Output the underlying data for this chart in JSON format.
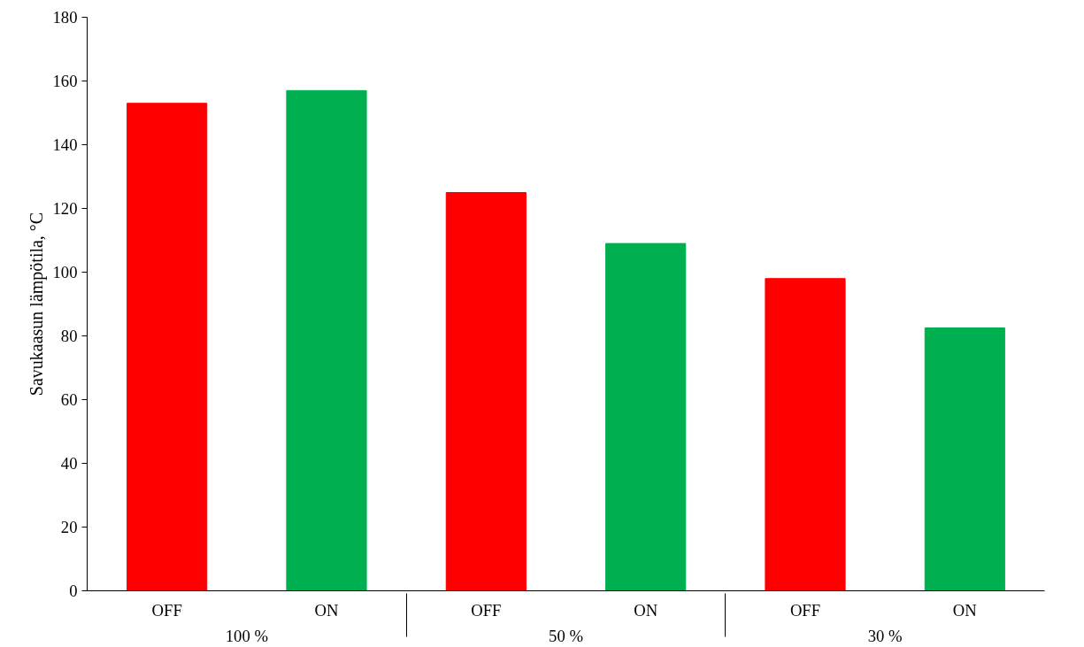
{
  "chart_data": {
    "type": "bar",
    "ylabel": "Savukaasun lämpötila, °C",
    "categories": [
      "OFF",
      "ON",
      "OFF",
      "ON",
      "OFF",
      "ON"
    ],
    "annotations": [
      "100 %",
      "50 %",
      "30 %"
    ],
    "values": [
      153,
      157,
      125,
      109,
      98,
      82.5
    ],
    "colors": [
      "#ff0000",
      "#00b050",
      "#ff0000",
      "#00b050",
      "#ff0000",
      "#00b050"
    ],
    "ylim": [
      0,
      180
    ],
    "yticks": [
      0,
      20,
      40,
      60,
      80,
      100,
      120,
      140,
      160,
      180
    ],
    "grid": false
  }
}
